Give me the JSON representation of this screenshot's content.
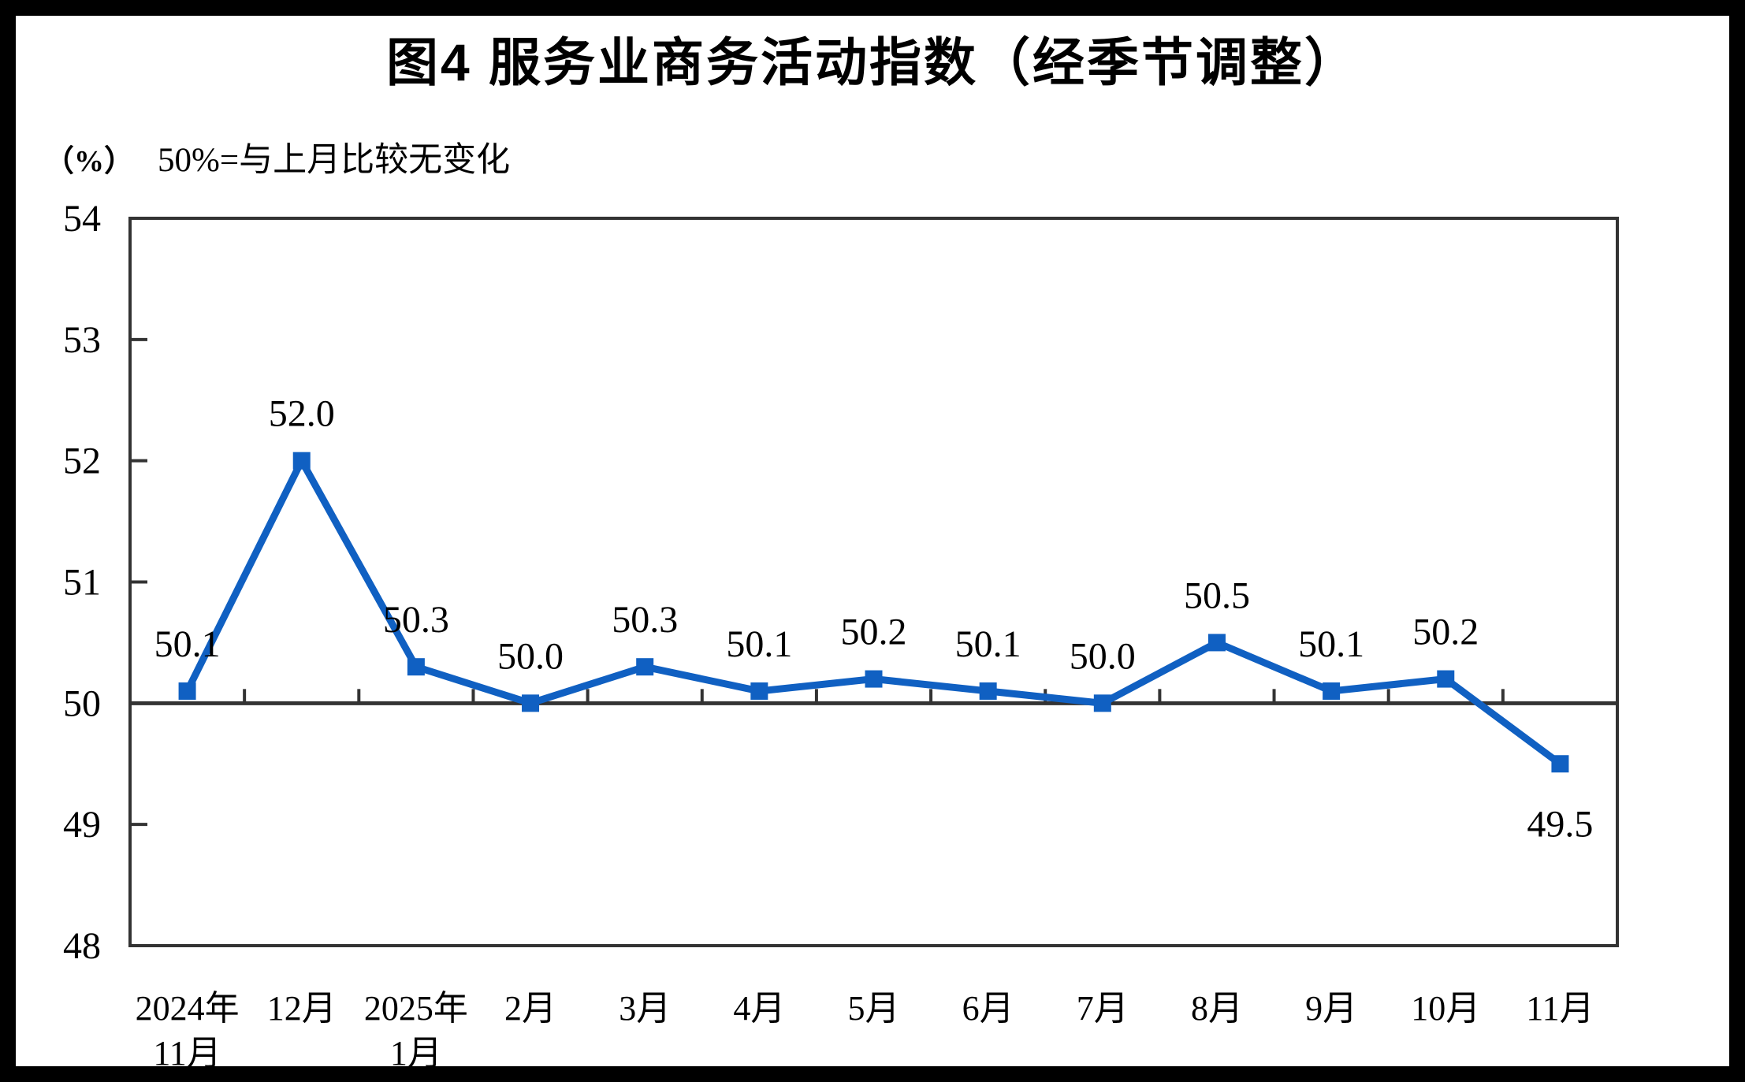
{
  "header": {
    "title": "图4 服务业商务活动指数（经季节调整）",
    "unit_label": "（%）",
    "note": "50%=与上月比较无变化"
  },
  "chart_data": {
    "type": "line",
    "title": "图4 服务业商务活动指数（经季节调整）",
    "ylabel": "（%）",
    "annotation": "50%=与上月比较无变化",
    "categories": [
      "2024年\n11月",
      "12月",
      "2025年\n1月",
      "2月",
      "3月",
      "4月",
      "5月",
      "6月",
      "7月",
      "8月",
      "9月",
      "10月",
      "11月"
    ],
    "series": [
      {
        "name": "服务业商务活动指数",
        "color": "#1060C2",
        "marker": "square",
        "values": [
          50.1,
          52.0,
          50.3,
          50.0,
          50.3,
          50.1,
          50.2,
          50.1,
          50.0,
          50.5,
          50.1,
          50.2,
          49.5
        ]
      }
    ],
    "data_labels": [
      "50.1",
      "52.0",
      "50.3",
      "50.0",
      "50.3",
      "50.1",
      "50.2",
      "50.1",
      "50.0",
      "50.5",
      "50.1",
      "50.2",
      "49.5"
    ],
    "label_positions": [
      "above",
      "above",
      "above",
      "above",
      "above",
      "above",
      "above",
      "above",
      "above",
      "above",
      "above",
      "above",
      "below"
    ],
    "y_ticks": [
      54,
      53,
      52,
      51,
      50,
      49,
      48
    ],
    "ylim": [
      48,
      54
    ],
    "baseline_value": 50,
    "grid": false,
    "legend": "none",
    "axis_color": "#333333",
    "text_color": "#000000"
  }
}
